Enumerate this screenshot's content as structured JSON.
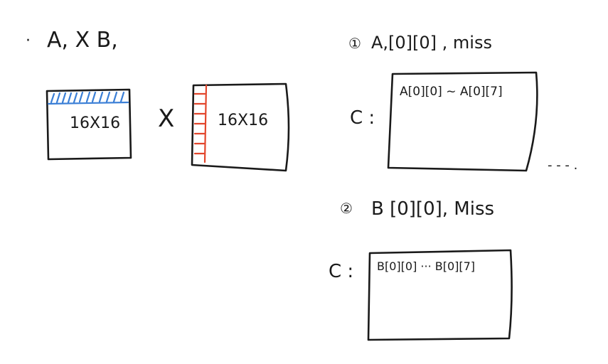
{
  "left": {
    "bullet": "·",
    "heading": "A, X B,",
    "matrix_a_label": "16X16",
    "times_symbol": "X",
    "matrix_b_label": "16X16",
    "colors": {
      "row_highlight": "#3b7fd6",
      "column_highlight": "#e2462c",
      "ink": "#1a1a1a"
    }
  },
  "right": {
    "step1": {
      "marker": "①",
      "title": "A,[0][0] , miss",
      "c_label": "C :",
      "content": "A[0][0] ~ A[0][7]",
      "ellipsis": "- - - ."
    },
    "step2": {
      "marker": "②",
      "title": "B [0][0], Miss",
      "c_label": "C :",
      "content": "B[0][0] ··· B[0][7]"
    }
  }
}
